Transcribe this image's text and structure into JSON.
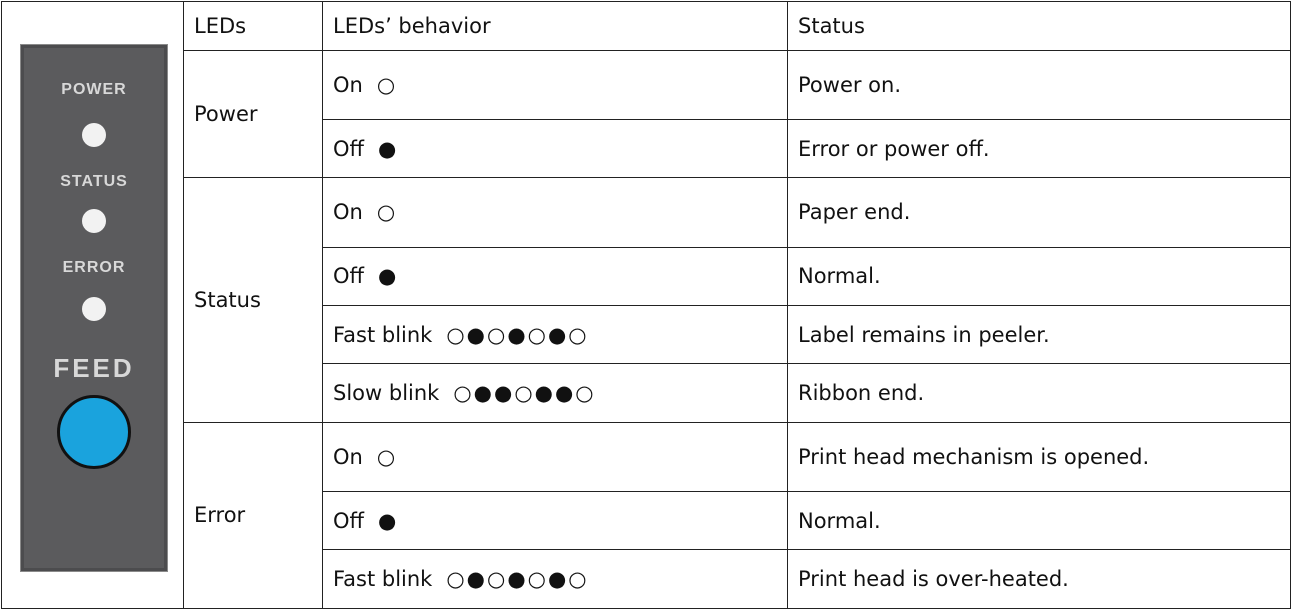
{
  "panel": {
    "labels": [
      "POWER",
      "STATUS",
      "ERROR",
      "FEED"
    ]
  },
  "table": {
    "header": [
      "LEDs",
      "LEDs’ behavior",
      "Status"
    ],
    "groups": [
      {
        "led": "Power",
        "rows": [
          {
            "behavior": "On",
            "pattern": "○",
            "status": "Power on."
          },
          {
            "behavior": "Off",
            "pattern": "●",
            "status": "Error or power off."
          }
        ]
      },
      {
        "led": "Status",
        "rows": [
          {
            "behavior": "On",
            "pattern": "○",
            "status": "Paper end."
          },
          {
            "behavior": "Off",
            "pattern": "●",
            "status": "Normal."
          },
          {
            "behavior": "Fast blink",
            "pattern": "○●○●○●○",
            "status": "Label remains in peeler."
          },
          {
            "behavior": "Slow blink",
            "pattern": "○●●○●●○",
            "status": "Ribbon end."
          }
        ]
      },
      {
        "led": "Error",
        "rows": [
          {
            "behavior": "On",
            "pattern": "○",
            "status": "Print head mechanism is opened."
          },
          {
            "behavior": "Off",
            "pattern": "●",
            "status": "Normal."
          },
          {
            "behavior": "Fast blink",
            "pattern": "○●○●○●○",
            "status": "Print head is over-heated."
          }
        ]
      }
    ]
  }
}
